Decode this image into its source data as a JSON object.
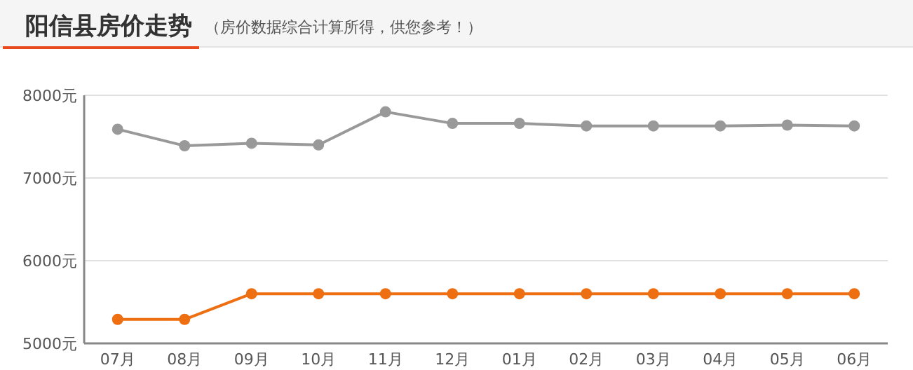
{
  "chart_data": {
    "type": "line",
    "title": "阳信县房价走势",
    "subtitle": "（房价数据综合计算所得，供您参考！）",
    "categories": [
      "07月",
      "08月",
      "09月",
      "10月",
      "11月",
      "12月",
      "01月",
      "02月",
      "03月",
      "04月",
      "05月",
      "06月"
    ],
    "series": [
      {
        "color": "#999999",
        "values": [
          7590,
          7390,
          7420,
          7400,
          7800,
          7660,
          7660,
          7630,
          7630,
          7630,
          7640,
          7630
        ]
      },
      {
        "color": "#ee6e12",
        "values": [
          5290,
          5290,
          5600,
          5600,
          5600,
          5600,
          5600,
          5600,
          5600,
          5600,
          5600,
          5600
        ]
      }
    ],
    "ylim": [
      5000,
      8000
    ],
    "yticks": [
      {
        "value": 5000,
        "label": "5000元"
      },
      {
        "value": 6000,
        "label": "6000元"
      },
      {
        "value": 7000,
        "label": "7000元"
      },
      {
        "value": 8000,
        "label": "8000元"
      }
    ],
    "grid": "y",
    "marker": "circle",
    "line_style": "solid"
  }
}
